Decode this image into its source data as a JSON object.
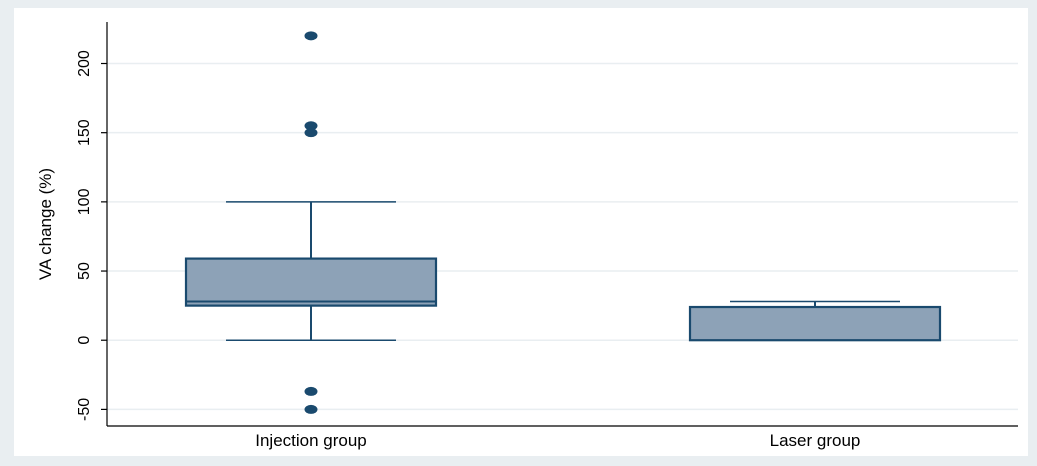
{
  "chart_data": {
    "type": "boxplot",
    "ylabel": "VA change (%)",
    "xlabel": "",
    "ylim": [
      -62,
      230
    ],
    "yticks": [
      -50,
      0,
      50,
      100,
      150,
      200
    ],
    "ytick_labels": [
      "-50",
      "0",
      "50",
      "100",
      "150",
      "200"
    ],
    "grid": true,
    "categories": [
      "Injection group",
      "Laser group"
    ],
    "boxes": [
      {
        "category": "Injection group",
        "whisker_low": 0,
        "q1": 25,
        "median": 28,
        "q3": 59,
        "whisker_high": 100,
        "outliers": [
          220,
          155,
          150,
          -37,
          -50
        ]
      },
      {
        "category": "Laser group",
        "whisker_low": 0,
        "q1": 0,
        "median": 24,
        "q3": 24,
        "whisker_high": 28,
        "outliers": []
      }
    ],
    "colors": {
      "box_fill": "#8da2b7",
      "box_edge": "#1a4a6e",
      "outlier": "#1a4a6e",
      "grid": "#e9eef1"
    }
  }
}
